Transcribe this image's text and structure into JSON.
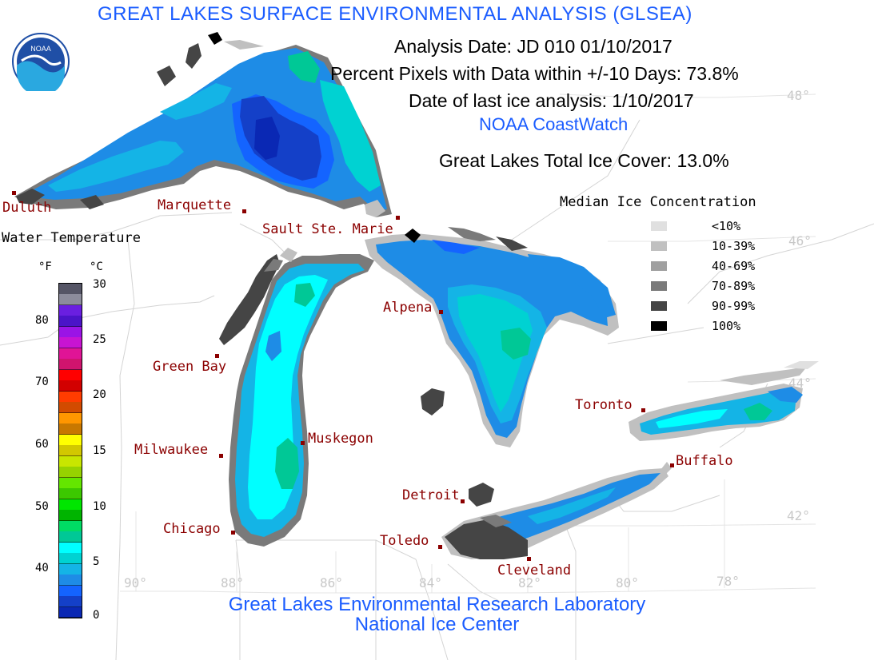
{
  "header": {
    "title": "GREAT LAKES SURFACE ENVIRONMENTAL ANALYSIS (GLSEA)",
    "analysis_date": "Analysis Date:  JD 010 01/10/2017",
    "percent_pixels": "Percent Pixels with Data within +/-10 Days:  73.8%",
    "last_ice": "Date of last ice analysis: 1/10/2017",
    "coastwatch": "NOAA CoastWatch",
    "total_ice": "Great Lakes Total Ice Cover:  13.0%"
  },
  "logo": {
    "text": "NOAA",
    "colors": {
      "ring": "#ffffff",
      "sky": "#1f4fa6",
      "sea": "#2aa8e0"
    }
  },
  "cities": [
    {
      "name": "Duluth"
    },
    {
      "name": "Marquette"
    },
    {
      "name": "Sault Ste. Marie"
    },
    {
      "name": "Green Bay"
    },
    {
      "name": "Alpena"
    },
    {
      "name": "Muskegon"
    },
    {
      "name": "Milwaukee"
    },
    {
      "name": "Chicago"
    },
    {
      "name": "Detroit"
    },
    {
      "name": "Toledo"
    },
    {
      "name": "Cleveland"
    },
    {
      "name": "Toronto"
    },
    {
      "name": "Buffalo"
    }
  ],
  "gridlines": {
    "lat_labels": [
      "48°",
      "46°",
      "44°",
      "42°"
    ],
    "lon_labels": [
      "90°",
      "88°",
      "86°",
      "84°",
      "82°",
      "80°",
      "78°"
    ]
  },
  "ice_legend": {
    "title": "Median Ice Concentration",
    "items": [
      {
        "label": "<10%",
        "color": "#e0e0e0"
      },
      {
        "label": "10-39%",
        "color": "#c0c0c0"
      },
      {
        "label": "40-69%",
        "color": "#a0a0a0"
      },
      {
        "label": "70-89%",
        "color": "#7a7a7a"
      },
      {
        "label": "90-99%",
        "color": "#454545"
      },
      {
        "label": "100%",
        "color": "#000000"
      }
    ]
  },
  "temp_legend": {
    "title": "Water Temperature",
    "unit_f": "°F",
    "unit_c": "°C",
    "f_ticks": [
      "80",
      "70",
      "60",
      "50",
      "40"
    ],
    "c_ticks": [
      "30",
      "25",
      "20",
      "15",
      "10",
      "5",
      "0"
    ],
    "colors": [
      "#555566",
      "#8c8c9c",
      "#6a1fe0",
      "#4b14c8",
      "#9a14e6",
      "#c814d2",
      "#e01496",
      "#d0146e",
      "#ff0000",
      "#d20000",
      "#ff3c00",
      "#d24b00",
      "#ff9600",
      "#c87800",
      "#ffff00",
      "#d2c800",
      "#c8e600",
      "#96d200",
      "#64e600",
      "#3cc800",
      "#00e600",
      "#00b400",
      "#00dc64",
      "#00c896",
      "#00ffff",
      "#00d2d2",
      "#14b4e6",
      "#1e8ce6",
      "#1464ff",
      "#1440c8",
      "#0a28b4"
    ]
  },
  "footer": {
    "line1": "Great Lakes Environmental Research Laboratory",
    "line2": "National Ice Center"
  }
}
